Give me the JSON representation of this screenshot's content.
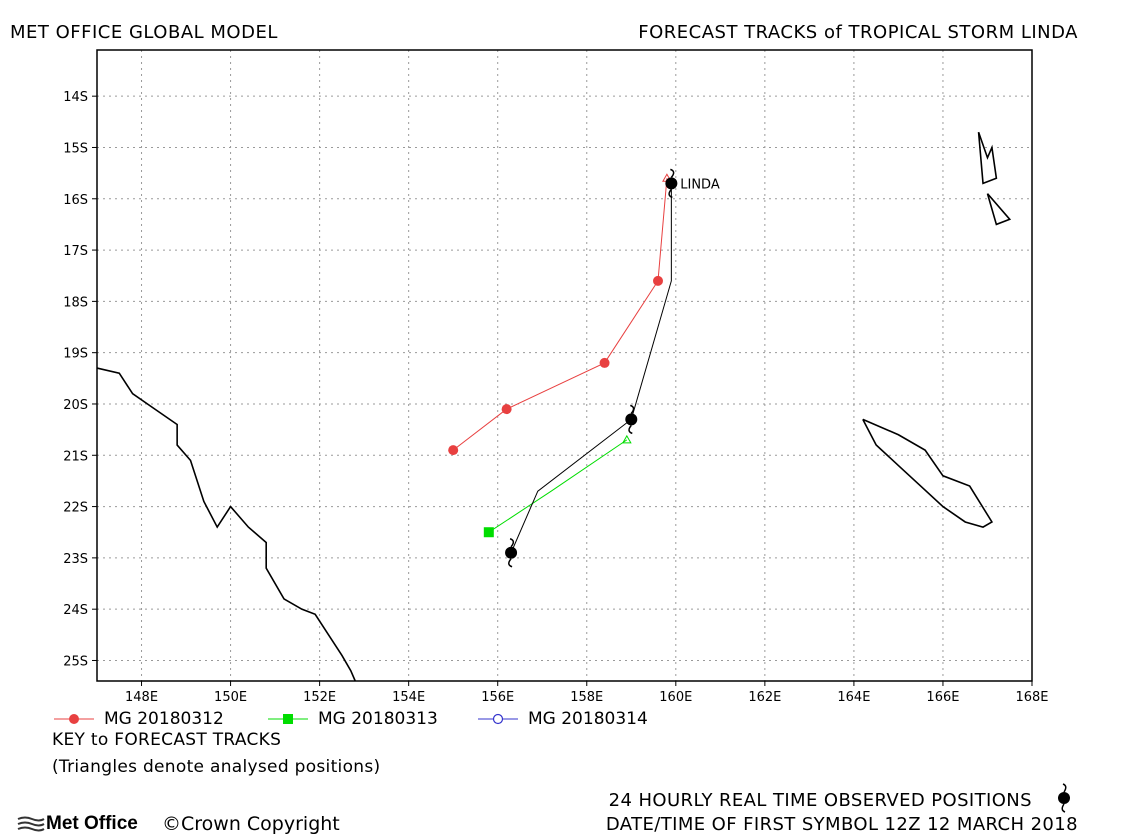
{
  "header": {
    "left": "MET OFFICE GLOBAL MODEL",
    "right": "FORECAST TRACKS of TROPICAL STORM LINDA"
  },
  "chart_data": {
    "type": "map",
    "lon_range": [
      147,
      168
    ],
    "lat_range": [
      -13.1,
      -25.4
    ],
    "lon_ticks": [
      148,
      150,
      152,
      154,
      156,
      158,
      160,
      162,
      164,
      166,
      168
    ],
    "lon_tick_labels": [
      "148E",
      "150E",
      "152E",
      "154E",
      "156E",
      "158E",
      "160E",
      "162E",
      "164E",
      "166E",
      "168E"
    ],
    "lat_ticks": [
      -14,
      -15,
      -16,
      -17,
      -18,
      -19,
      -20,
      -21,
      -22,
      -23,
      -24,
      -25
    ],
    "lat_tick_labels": [
      "14S",
      "15S",
      "16S",
      "17S",
      "18S",
      "19S",
      "20S",
      "21S",
      "22S",
      "23S",
      "24S",
      "25S"
    ],
    "grid": true,
    "storm_label": "LINDA",
    "storm_label_pos": [
      160.1,
      -15.8
    ],
    "observed_track": [
      [
        159.9,
        -15.7
      ],
      [
        159.9,
        -17.6
      ],
      [
        159.0,
        -20.3
      ],
      [
        156.9,
        -21.7
      ],
      [
        156.3,
        -22.9
      ]
    ],
    "observed_positions": [
      [
        159.9,
        -15.7
      ],
      [
        159.0,
        -20.3
      ],
      [
        156.3,
        -22.9
      ]
    ],
    "series": [
      {
        "name": "MG 20180312",
        "color": "#e84040",
        "marker": "circle",
        "points": [
          [
            159.8,
            -15.6
          ],
          [
            159.6,
            -17.6
          ],
          [
            158.4,
            -19.2
          ],
          [
            156.2,
            -20.1
          ],
          [
            155.0,
            -20.9
          ]
        ]
      },
      {
        "name": "MG 20180313",
        "color": "#00dd00",
        "marker": "square",
        "points": [
          [
            158.9,
            -20.7
          ],
          [
            157.2,
            -21.7
          ],
          [
            155.8,
            -22.5
          ]
        ]
      },
      {
        "name": "MG 20180314",
        "color": "#3333cc",
        "marker": "open-circle",
        "points": [
          [
            156.3,
            -22.9
          ]
        ]
      }
    ],
    "coastlines": [
      [
        [
          147.0,
          -19.3
        ],
        [
          147.5,
          -19.4
        ],
        [
          147.8,
          -19.8
        ],
        [
          148.3,
          -20.1
        ],
        [
          148.8,
          -20.4
        ],
        [
          148.8,
          -20.8
        ],
        [
          149.1,
          -21.1
        ],
        [
          149.4,
          -21.9
        ],
        [
          149.7,
          -22.4
        ],
        [
          150.0,
          -22.0
        ],
        [
          150.4,
          -22.4
        ],
        [
          150.8,
          -22.7
        ],
        [
          150.8,
          -23.2
        ],
        [
          151.2,
          -23.8
        ],
        [
          151.6,
          -24.0
        ],
        [
          151.9,
          -24.1
        ],
        [
          152.2,
          -24.5
        ],
        [
          152.5,
          -24.9
        ],
        [
          152.7,
          -25.2
        ],
        [
          152.8,
          -25.4
        ]
      ],
      [
        [
          164.2,
          -20.3
        ],
        [
          164.5,
          -20.8
        ],
        [
          165.0,
          -21.2
        ],
        [
          165.5,
          -21.6
        ],
        [
          166.0,
          -22.0
        ],
        [
          166.5,
          -22.3
        ],
        [
          166.9,
          -22.4
        ],
        [
          167.1,
          -22.3
        ],
        [
          166.6,
          -21.6
        ],
        [
          166.0,
          -21.4
        ],
        [
          165.6,
          -20.9
        ],
        [
          165.0,
          -20.6
        ],
        [
          164.2,
          -20.3
        ]
      ],
      [
        [
          166.8,
          -14.7
        ],
        [
          166.9,
          -15.7
        ],
        [
          167.2,
          -15.6
        ],
        [
          167.1,
          -15.0
        ],
        [
          167.0,
          -15.2
        ],
        [
          166.8,
          -14.7
        ]
      ],
      [
        [
          167.0,
          -15.9
        ],
        [
          167.2,
          -16.5
        ],
        [
          167.5,
          -16.4
        ],
        [
          167.0,
          -15.9
        ]
      ]
    ]
  },
  "legend": [
    {
      "label": "MG 20180312",
      "color": "#e84040",
      "marker": "circle"
    },
    {
      "label": "MG 20180313",
      "color": "#00dd00",
      "marker": "square"
    },
    {
      "label": "MG 20180314",
      "color": "#3333cc",
      "marker": "open-circle"
    }
  ],
  "key_title": "KEY to FORECAST TRACKS",
  "key_note": "(Triangles denote analysed positions)",
  "observed_text": "24 HOURLY REAL TIME OBSERVED POSITIONS",
  "first_symbol_text": "DATE/TIME OF FIRST SYMBOL 12Z 12 MARCH 2018",
  "logo_text": "Met Office",
  "copyright_text": "©Crown Copyright",
  "icons": {
    "storm": "tropical-storm-icon",
    "logo": "met-office-logo-icon"
  }
}
